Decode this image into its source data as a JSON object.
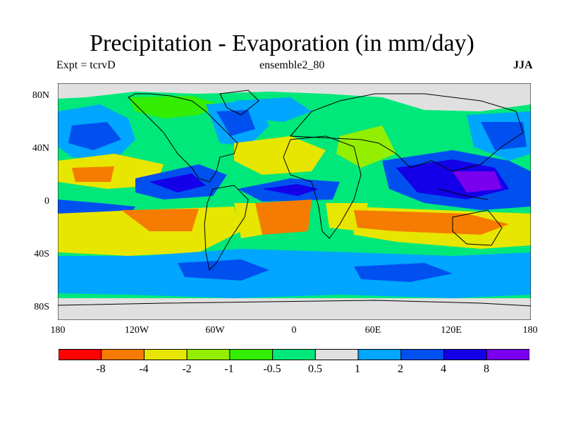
{
  "title": "Precipitation - Evaporation (in mm/day)",
  "subtitle_left": "Expt = tcrvD",
  "subtitle_center": "ensemble2_80",
  "subtitle_right": "JJA",
  "lat_ticks": [
    "80N",
    "40N",
    "0",
    "40S",
    "80S"
  ],
  "lon_ticks": [
    "180",
    "120W",
    "60W",
    "0",
    "60E",
    "120E",
    "180"
  ],
  "colorbar": {
    "colors": [
      "#ff0000",
      "#f57c00",
      "#e6e600",
      "#94ee00",
      "#33ee00",
      "#00e87a",
      "#e0e0e0",
      "#00a6ff",
      "#0050f0",
      "#1400e8",
      "#7a00ef"
    ],
    "labels": [
      "-8",
      "-4",
      "-2",
      "-1",
      "-0.5",
      "0.5",
      "1",
      "2",
      "4",
      "8"
    ]
  },
  "colors": {
    "ocean_bg": "#00e87a",
    "coastline": "#000000"
  }
}
